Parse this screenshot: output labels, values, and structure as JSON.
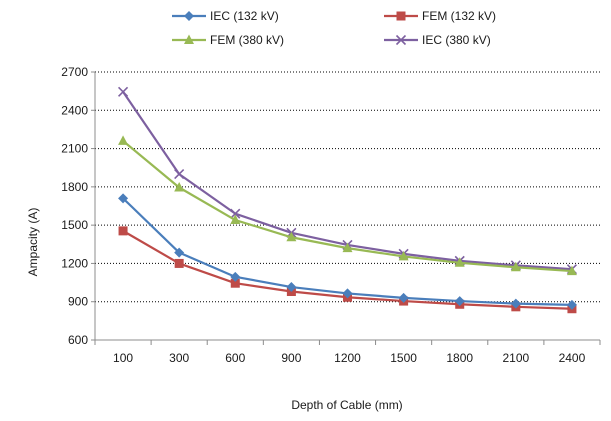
{
  "chart_data": {
    "type": "line",
    "categories": [
      "100",
      "300",
      "600",
      "900",
      "1200",
      "1500",
      "1800",
      "2100",
      "2400"
    ],
    "xlabel": "Depth of Cable (mm)",
    "ylabel": "Ampacity (A)",
    "ylim": [
      600,
      2700
    ],
    "yticks": [
      600,
      900,
      1200,
      1500,
      1800,
      2100,
      2400,
      2700
    ],
    "grid": "horizontal dotted",
    "legend_position": "top",
    "series": [
      {
        "name": "IEC (132 kV)",
        "color": "#4a7ebb",
        "marker": "diamond",
        "values": [
          1710,
          1285,
          1095,
          1015,
          965,
          930,
          905,
          885,
          875
        ]
      },
      {
        "name": "FEM (132 kV)",
        "color": "#be4b48",
        "marker": "square",
        "values": [
          1455,
          1200,
          1045,
          980,
          935,
          905,
          880,
          860,
          845
        ]
      },
      {
        "name": "FEM (380 kV)",
        "color": "#98b954",
        "marker": "triangle",
        "values": [
          2160,
          1795,
          1540,
          1405,
          1320,
          1255,
          1205,
          1170,
          1140
        ]
      },
      {
        "name": "IEC (380 kV)",
        "color": "#7d60a0",
        "marker": "x",
        "values": [
          2545,
          1900,
          1590,
          1440,
          1345,
          1275,
          1220,
          1185,
          1155
        ]
      }
    ]
  }
}
